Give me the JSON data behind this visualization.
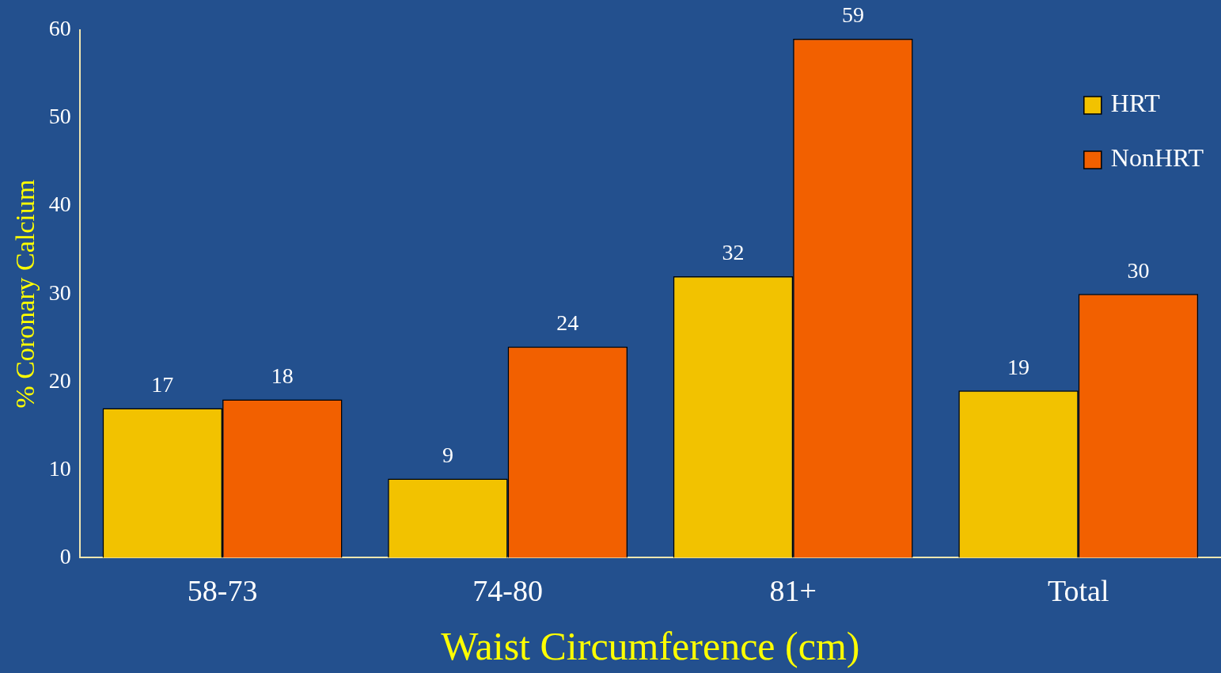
{
  "chart_data": {
    "type": "bar",
    "xlabel": "Waist Circumference (cm)",
    "ylabel": "% Coronary Calcium",
    "categories": [
      "58-73",
      "74-80",
      "81+",
      "Total"
    ],
    "series": [
      {
        "name": "HRT",
        "color": "#f2c200",
        "values": [
          17,
          9,
          32,
          19
        ]
      },
      {
        "name": "NonHRT",
        "color": "#f26000",
        "values": [
          18,
          24,
          59,
          30
        ]
      }
    ],
    "ylim": [
      0,
      60
    ],
    "yticks": [
      0,
      10,
      20,
      30,
      40,
      50,
      60
    ],
    "grid": false,
    "legend": "top right",
    "data_labels": true
  }
}
